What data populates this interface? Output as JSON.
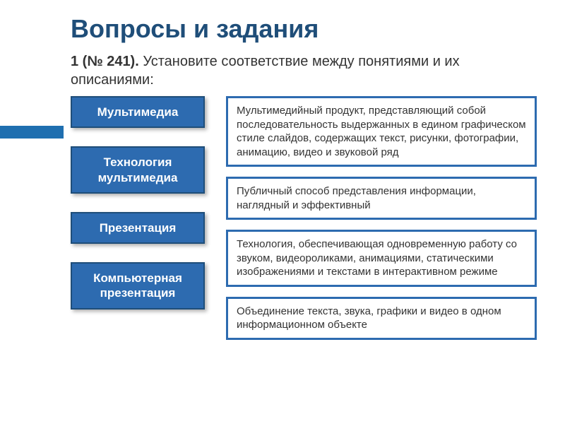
{
  "title": "Вопросы и задания",
  "question": {
    "number": "1 (№ 241).",
    "text": "Установите соответствие между понятиями и их описаниями:"
  },
  "terms": [
    {
      "label": "Мультимедиа"
    },
    {
      "label": "Технология мультимедиа"
    },
    {
      "label": "Презентация"
    },
    {
      "label": "Компьютерная презентация"
    }
  ],
  "descriptions": [
    {
      "text": "Мультимедийный продукт, представляющий собой последовательность выдержанных в едином графическом стиле слайдов, содержащих текст, рисунки, фотографии, анимацию, видео и звуковой ряд"
    },
    {
      "text": "Публичный способ представления информации, наглядный и эффективный"
    },
    {
      "text": "Технология, обеспечивающая одновременную работу со звуком, видеороликами, анимациями, статическими изображениями и текстами в интерактивном режиме"
    },
    {
      "text": "Объединение текста, звука, графики и видео в одном информационном объекте"
    }
  ],
  "colors": {
    "title": "#1f4e79",
    "term_bg": "#2d6bb0",
    "term_border": "#1f4e79",
    "desc_border": "#2d6bb0",
    "accent": "#1f6fb0",
    "background": "#ffffff"
  }
}
